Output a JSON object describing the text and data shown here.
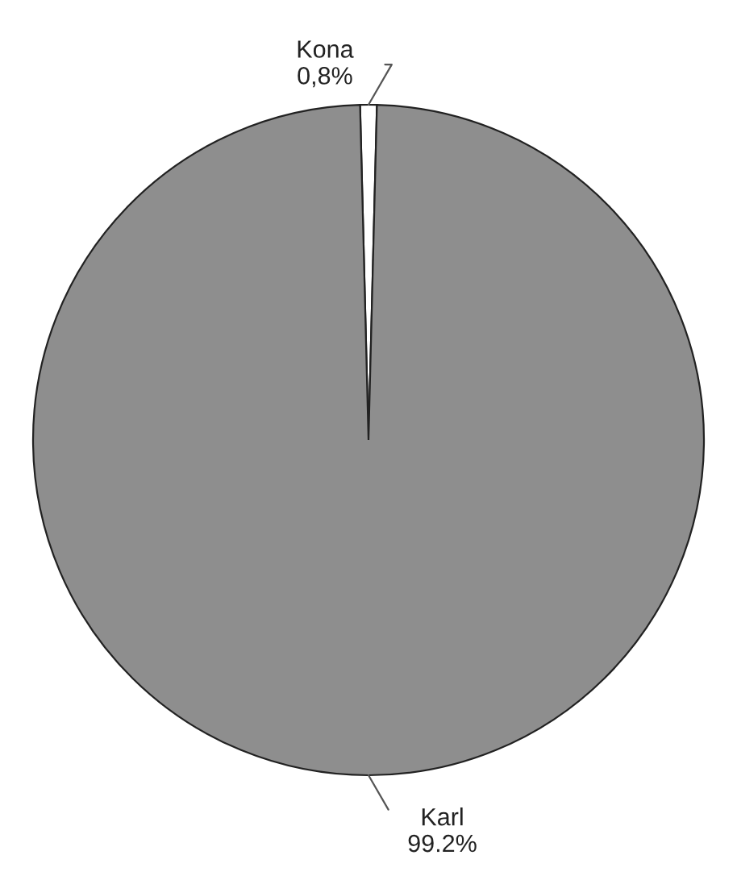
{
  "chart_data": {
    "type": "pie",
    "categories": [
      "Kona",
      "Karl"
    ],
    "values": [
      0.8,
      99.2
    ],
    "value_labels": [
      "0,8%",
      "99.2%"
    ],
    "colors": [
      "#ffffff",
      "#8e8e8e"
    ]
  }
}
